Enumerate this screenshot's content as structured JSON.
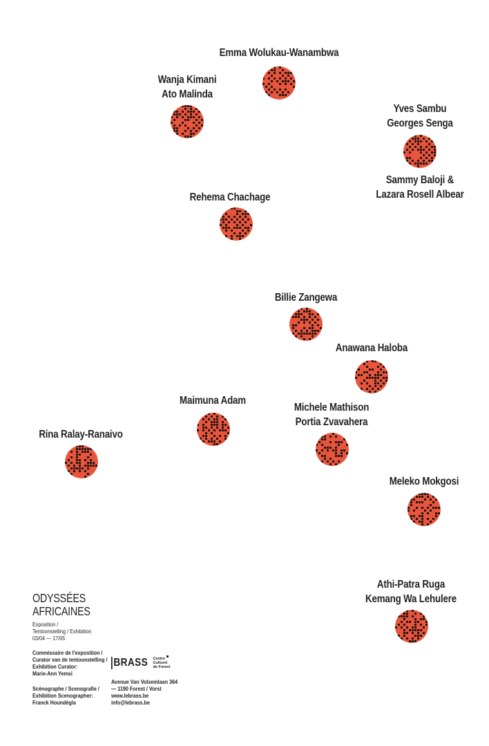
{
  "colors": {
    "dot_red": "#e8553c",
    "dot_dark": "#1c1410",
    "text": "#222222"
  },
  "artists": [
    {
      "name": "Emma Wolukau-Wanambwa",
      "lines": [
        "Emma Wolukau-Wanambwa"
      ]
    },
    {
      "name": "Wanja Kimani / Ato Malinda",
      "lines": [
        "Wanja Kimani",
        "Ato Malinda"
      ]
    },
    {
      "name": "Yves Sambu / Georges Senga",
      "lines": [
        "Yves Sambu",
        "Georges Senga"
      ]
    },
    {
      "name": "Sammy Baloji & Lazara Rosell Albear",
      "lines": [
        "Sammy Baloji &",
        "Lazara Rosell Albear"
      ]
    },
    {
      "name": "Rehema Chachage",
      "lines": [
        "Rehema Chachage"
      ]
    },
    {
      "name": "Billie Zangewa",
      "lines": [
        "Billie Zangewa"
      ]
    },
    {
      "name": "Anawana Haloba",
      "lines": [
        "Anawana Haloba"
      ]
    },
    {
      "name": "Maimuna Adam",
      "lines": [
        "Maimuna Adam"
      ]
    },
    {
      "name": "Michele Mathison / Portia Zvavahera",
      "lines": [
        "Michele Mathison",
        "Portia Zvavahera"
      ]
    },
    {
      "name": "Rina Ralay-Ranaivo",
      "lines": [
        "Rina Ralay-Ranaivo"
      ]
    },
    {
      "name": "Meleko Mokgosi",
      "lines": [
        "Meleko Mokgosi"
      ]
    },
    {
      "name": "Athi-Patra Ruga / Kemang Wa Lehulere",
      "lines": [
        "Athi-Patra Ruga",
        "Kemang Wa Lehulere"
      ]
    }
  ],
  "footer": {
    "title_line1": "ODYSSÉES",
    "title_line2": "AFRICAINES",
    "type_line1": "Exposition /",
    "type_line2": "Tentoonstelling / Exhibition",
    "dates": "03/04 — 17/05",
    "curator_line1": "Commissaire de l'exposition /",
    "curator_line2": "Curator van de tentoonstelling /",
    "curator_line3": "Exhibition Curator:",
    "curator_name": "Marie-Ann Yemsi",
    "sceno_line1": "Scénographe / Scenografie /",
    "sceno_line2": "Exhibition Scenographer:",
    "sceno_name": "Franck Houndégla"
  },
  "venue": {
    "logo": "BRASS",
    "logo_sub1": "Centre",
    "logo_sub2": "Culturel",
    "logo_sub3": "de Forest",
    "address1": "Avenue Van Volxemlaan 364",
    "address2": "— 1190 Forest / Vorst",
    "web": "www.lebrass.be",
    "email": "info@lebrass.be"
  }
}
